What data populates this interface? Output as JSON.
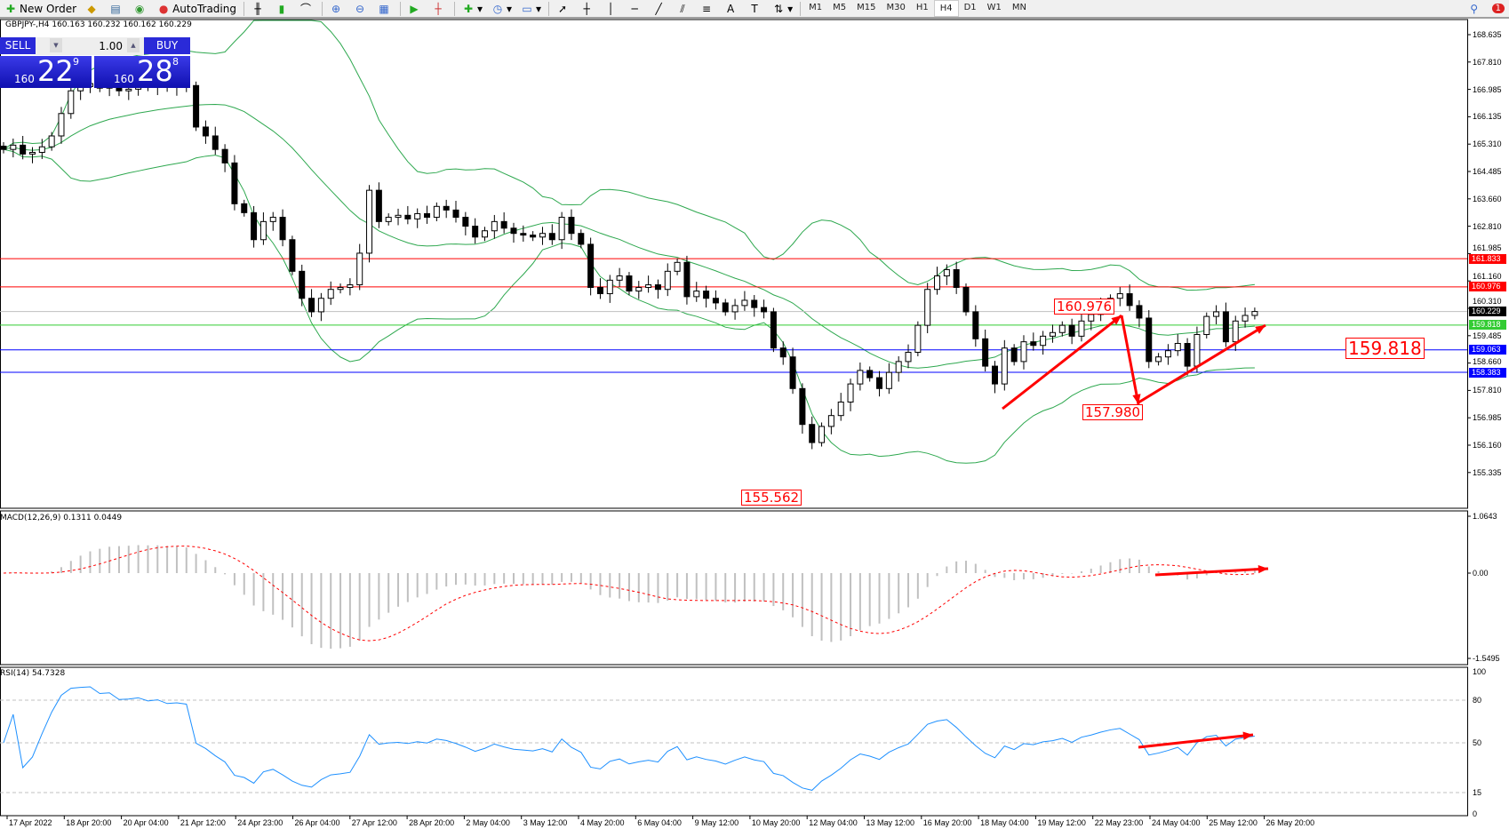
{
  "toolbar": {
    "new_order": "New Order",
    "autotrading": "AutoTrading",
    "timeframes": [
      "M1",
      "M5",
      "M15",
      "M30",
      "H1",
      "H4",
      "D1",
      "W1",
      "MN"
    ],
    "selected_timeframe": "H4",
    "notification_count": "1"
  },
  "chart_header": "GBPJPY-,H4  160.163 160.232 160.162 160.229",
  "one_click": {
    "sell_label": "SELL",
    "buy_label": "BUY",
    "lot": "1.00",
    "sell_big": "22",
    "sell_prefix": "160",
    "sell_sup": "9",
    "buy_big": "28",
    "buy_prefix": "160",
    "buy_sup": "8"
  },
  "price_axis": [
    "168.635",
    "167.810",
    "166.985",
    "166.135",
    "165.310",
    "164.485",
    "163.660",
    "162.810",
    "161.985",
    "161.160",
    "160.310",
    "159.485",
    "158.660",
    "157.810",
    "156.985",
    "156.160",
    "155.335"
  ],
  "levels": [
    {
      "price": 161.833,
      "label": "161.833",
      "color": "#ff0000"
    },
    {
      "price": 160.976,
      "label": "160.976",
      "color": "#ff0000"
    },
    {
      "price": 160.229,
      "label": "160.229",
      "color": "#000000",
      "line": "#c0c0c0"
    },
    {
      "price": 159.818,
      "label": "159.818",
      "color": "#33cc33"
    },
    {
      "price": 159.063,
      "label": "159.063",
      "color": "#0000ff"
    },
    {
      "price": 158.383,
      "label": "158.383",
      "color": "#0000ff"
    }
  ],
  "annotations": {
    "high": "160.976",
    "low": "157.980",
    "bottom": "155.562",
    "right": "159.818"
  },
  "macd": {
    "label": "MACD(12,26,9) 0.1311 0.0449",
    "axis": [
      "1.0643",
      "0.00",
      "-1.5495"
    ]
  },
  "rsi": {
    "label": "RSI(14) 54.7328",
    "axis": [
      "100",
      "80",
      "50",
      "15",
      "0"
    ]
  },
  "time_axis": [
    "17 Apr 2022",
    "18 Apr 20:00",
    "20 Apr 04:00",
    "21 Apr 12:00",
    "24 Apr 23:00",
    "26 Apr 04:00",
    "27 Apr 12:00",
    "28 Apr 20:00",
    "2 May 04:00",
    "3 May 12:00",
    "4 May 20:00",
    "6 May 04:00",
    "9 May 12:00",
    "10 May 20:00",
    "12 May 04:00",
    "13 May 12:00",
    "16 May 20:00",
    "18 May 04:00",
    "19 May 12:00",
    "22 May 23:00",
    "24 May 04:00",
    "25 May 12:00",
    "26 May 20:00"
  ],
  "colors": {
    "bands": "#2ea84f",
    "rsi": "#1e90ff",
    "signal": "#ff0000",
    "histogram": "#c0c0c0",
    "arrows": "#ff0000"
  },
  "chart_data": {
    "type": "candlestick",
    "symbol": "GBPJPY-",
    "timeframe": "H4",
    "ylim": [
      155.335,
      168.635
    ],
    "close": [
      165.15,
      165.28,
      165.01,
      165.06,
      165.23,
      165.56,
      166.24,
      166.93,
      167.06,
      167.15,
      167.01,
      167.09,
      166.93,
      166.98,
      167.12,
      167.04,
      167.15,
      167.06,
      167.12,
      167.09,
      165.83,
      165.56,
      165.15,
      164.74,
      163.5,
      163.23,
      162.41,
      162.96,
      163.09,
      162.41,
      161.45,
      160.63,
      160.22,
      160.63,
      160.9,
      160.96,
      161.04,
      162.0,
      163.91,
      162.96,
      163.09,
      163.15,
      163.04,
      163.2,
      163.09,
      163.42,
      163.31,
      163.09,
      162.82,
      162.49,
      162.68,
      162.96,
      162.76,
      162.6,
      162.55,
      162.49,
      162.6,
      162.41,
      163.09,
      162.6,
      162.27,
      160.96,
      160.77,
      161.18,
      161.31,
      160.85,
      160.96,
      161.04,
      160.9,
      161.45,
      161.72,
      160.68,
      160.85,
      160.63,
      160.49,
      160.22,
      160.41,
      160.57,
      160.35,
      160.22,
      159.12,
      158.85,
      157.89,
      156.8,
      156.25,
      156.74,
      157.07,
      157.48,
      158.03,
      158.44,
      158.22,
      157.89,
      158.38,
      158.71,
      158.99,
      159.81,
      160.9,
      161.31,
      161.5,
      160.96,
      160.22,
      159.4,
      158.57,
      158.03,
      159.12,
      158.71,
      159.31,
      159.2,
      159.48,
      159.59,
      159.81,
      159.48,
      159.94,
      160.14,
      160.41,
      160.63,
      160.77,
      160.41,
      160.03,
      158.71,
      158.85,
      159.04,
      159.26,
      158.57,
      159.53,
      160.08,
      160.22,
      159.31,
      159.94,
      160.11,
      160.229
    ]
  }
}
